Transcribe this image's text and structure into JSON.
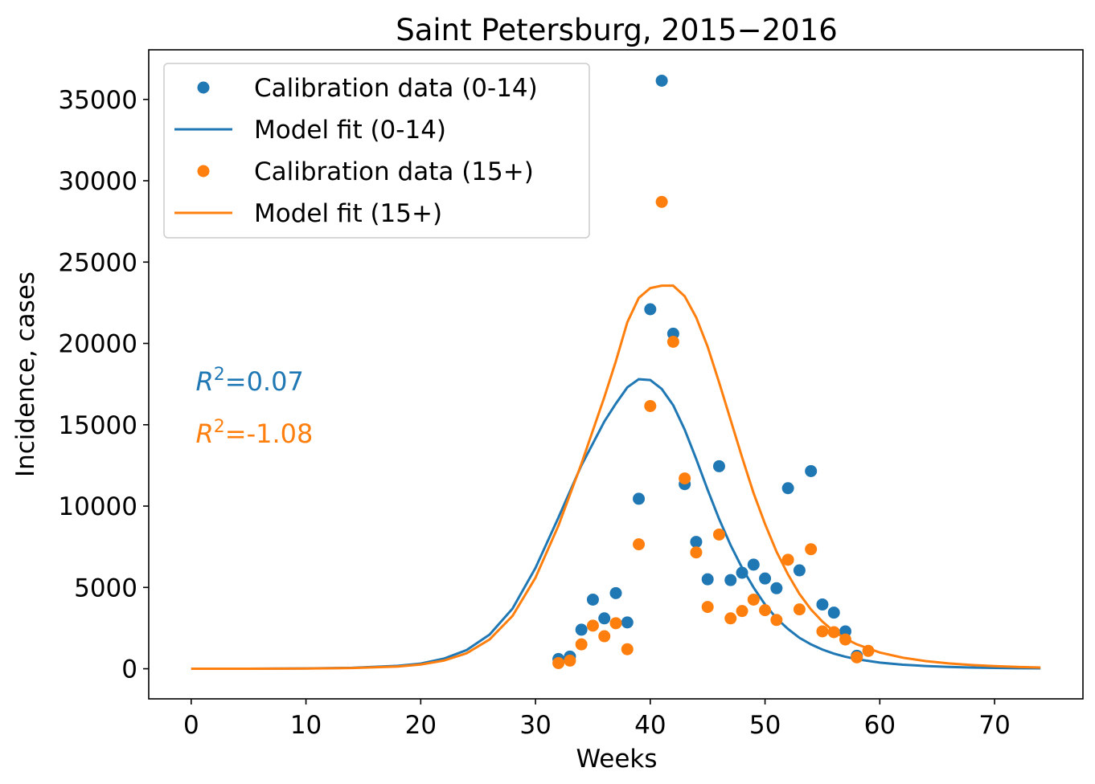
{
  "chart_data": {
    "type": "scatter",
    "title": "Saint Petersburg, 2015−2016",
    "xlabel": "Weeks",
    "ylabel": "Incidence, cases",
    "xlim": [
      -3.7,
      77.7
    ],
    "ylim": [
      -1850,
      38050
    ],
    "xticks": [
      0,
      10,
      20,
      30,
      40,
      50,
      60,
      70
    ],
    "yticks": [
      0,
      5000,
      10000,
      15000,
      20000,
      25000,
      30000,
      35000
    ],
    "grid": false,
    "legend_position": "top-left",
    "colors": {
      "blue": "#1f77b4",
      "orange": "#ff7f0e"
    },
    "series": [
      {
        "name": "Calibration data (0-14)",
        "kind": "scatter",
        "color": "#1f77b4",
        "points": [
          [
            32,
            600
          ],
          [
            33,
            750
          ],
          [
            34,
            2400
          ],
          [
            35,
            4250
          ],
          [
            36,
            3100
          ],
          [
            37,
            4650
          ],
          [
            38,
            2850
          ],
          [
            39,
            10450
          ],
          [
            40,
            22100
          ],
          [
            41,
            36150
          ],
          [
            42,
            20600
          ],
          [
            43,
            11350
          ],
          [
            44,
            7800
          ],
          [
            45,
            5500
          ],
          [
            46,
            12450
          ],
          [
            47,
            5450
          ],
          [
            48,
            5900
          ],
          [
            49,
            6400
          ],
          [
            50,
            5550
          ],
          [
            51,
            4950
          ],
          [
            52,
            11100
          ],
          [
            53,
            6050
          ],
          [
            54,
            12150
          ],
          [
            55,
            3950
          ],
          [
            56,
            3450
          ],
          [
            57,
            2300
          ],
          [
            58,
            800
          ]
        ]
      },
      {
        "name": "Model fit (0-14)",
        "kind": "line",
        "color": "#1f77b4",
        "points": [
          [
            0,
            0
          ],
          [
            5,
            5
          ],
          [
            10,
            20
          ],
          [
            14,
            60
          ],
          [
            18,
            180
          ],
          [
            20,
            320
          ],
          [
            22,
            620
          ],
          [
            24,
            1150
          ],
          [
            26,
            2100
          ],
          [
            28,
            3700
          ],
          [
            30,
            6200
          ],
          [
            32,
            9300
          ],
          [
            34,
            12500
          ],
          [
            36,
            15200
          ],
          [
            37,
            16300
          ],
          [
            38,
            17300
          ],
          [
            39,
            17800
          ],
          [
            40,
            17750
          ],
          [
            41,
            17200
          ],
          [
            42,
            16200
          ],
          [
            43,
            14700
          ],
          [
            44,
            12900
          ],
          [
            45,
            11000
          ],
          [
            46,
            9200
          ],
          [
            47,
            7600
          ],
          [
            48,
            6200
          ],
          [
            49,
            5000
          ],
          [
            50,
            3950
          ],
          [
            51,
            3100
          ],
          [
            52,
            2450
          ],
          [
            53,
            1900
          ],
          [
            54,
            1500
          ],
          [
            55,
            1180
          ],
          [
            56,
            930
          ],
          [
            57,
            740
          ],
          [
            58,
            590
          ],
          [
            60,
            380
          ],
          [
            62,
            250
          ],
          [
            64,
            170
          ],
          [
            66,
            110
          ],
          [
            68,
            75
          ],
          [
            70,
            50
          ],
          [
            72,
            35
          ],
          [
            74,
            25
          ]
        ]
      },
      {
        "name": "Calibration data (15+)",
        "kind": "scatter",
        "color": "#ff7f0e",
        "points": [
          [
            32,
            350
          ],
          [
            33,
            500
          ],
          [
            34,
            1500
          ],
          [
            35,
            2650
          ],
          [
            36,
            2000
          ],
          [
            37,
            2800
          ],
          [
            38,
            1200
          ],
          [
            39,
            7650
          ],
          [
            40,
            16150
          ],
          [
            41,
            28700
          ],
          [
            42,
            20100
          ],
          [
            43,
            11700
          ],
          [
            44,
            7150
          ],
          [
            45,
            3800
          ],
          [
            46,
            8250
          ],
          [
            47,
            3100
          ],
          [
            48,
            3550
          ],
          [
            49,
            4250
          ],
          [
            50,
            3600
          ],
          [
            51,
            3000
          ],
          [
            52,
            6700
          ],
          [
            53,
            3650
          ],
          [
            54,
            7350
          ],
          [
            55,
            2300
          ],
          [
            56,
            2250
          ],
          [
            57,
            1800
          ],
          [
            58,
            700
          ],
          [
            59,
            1100
          ]
        ]
      },
      {
        "name": "Model fit (15+)",
        "kind": "line",
        "color": "#ff7f0e",
        "points": [
          [
            0,
            0
          ],
          [
            5,
            4
          ],
          [
            10,
            15
          ],
          [
            14,
            45
          ],
          [
            18,
            140
          ],
          [
            20,
            260
          ],
          [
            22,
            500
          ],
          [
            24,
            950
          ],
          [
            26,
            1800
          ],
          [
            28,
            3250
          ],
          [
            30,
            5600
          ],
          [
            32,
            8800
          ],
          [
            34,
            12600
          ],
          [
            36,
            16700
          ],
          [
            37,
            18900
          ],
          [
            38,
            21300
          ],
          [
            39,
            22800
          ],
          [
            40,
            23400
          ],
          [
            41,
            23550
          ],
          [
            42,
            23550
          ],
          [
            43,
            22900
          ],
          [
            44,
            21600
          ],
          [
            45,
            19800
          ],
          [
            46,
            17600
          ],
          [
            47,
            15300
          ],
          [
            48,
            13000
          ],
          [
            49,
            10800
          ],
          [
            50,
            8900
          ],
          [
            51,
            7200
          ],
          [
            52,
            5800
          ],
          [
            53,
            4600
          ],
          [
            54,
            3650
          ],
          [
            55,
            2900
          ],
          [
            56,
            2300
          ],
          [
            57,
            1850
          ],
          [
            58,
            1500
          ],
          [
            60,
            1000
          ],
          [
            62,
            680
          ],
          [
            64,
            470
          ],
          [
            66,
            330
          ],
          [
            68,
            230
          ],
          [
            70,
            160
          ],
          [
            72,
            110
          ],
          [
            74,
            75
          ]
        ]
      }
    ],
    "annotations": [
      {
        "prefix": "R",
        "superscript": "2",
        "value": "=0.07",
        "color": "#1f77b4",
        "x": 0.4,
        "y": 17700
      },
      {
        "prefix": "R",
        "superscript": "2",
        "value": "=-1.08",
        "color": "#ff7f0e",
        "x": 0.4,
        "y": 14500
      }
    ]
  }
}
